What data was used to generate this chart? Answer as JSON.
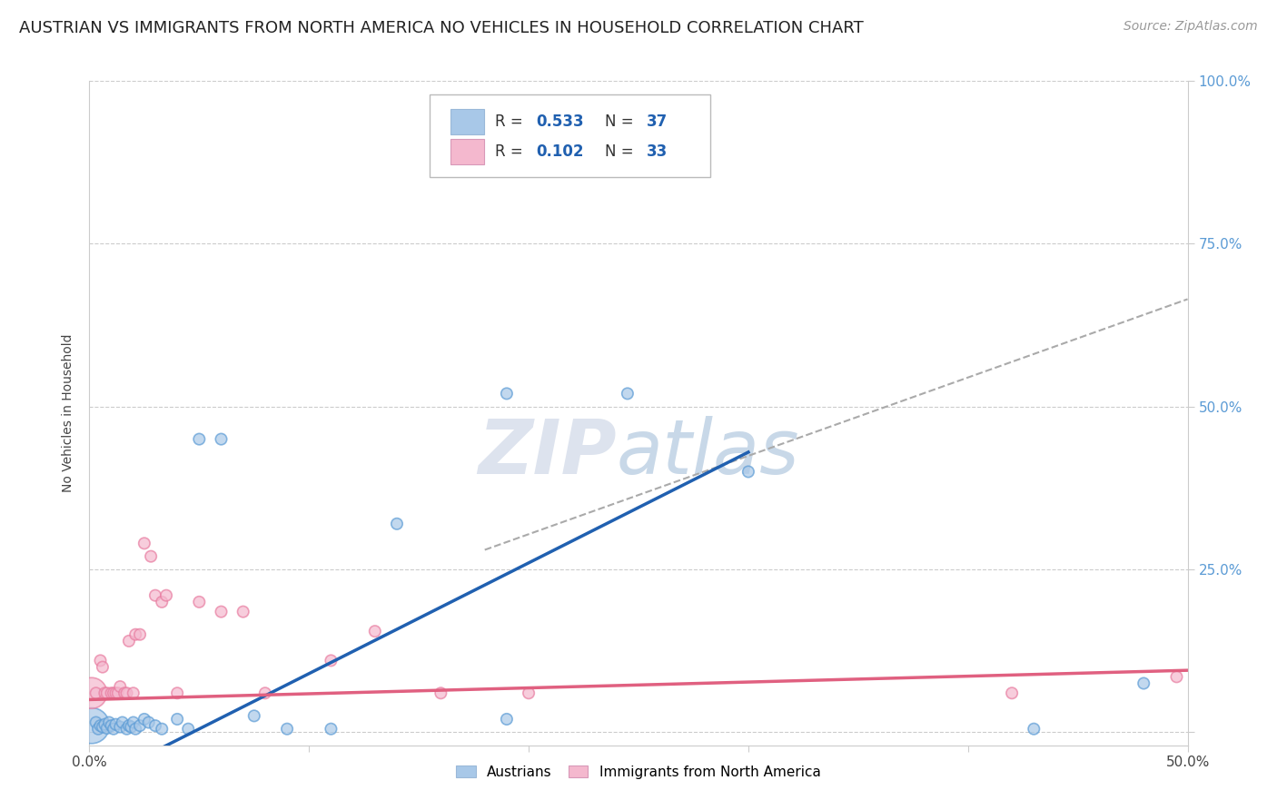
{
  "title": "AUSTRIAN VS IMMIGRANTS FROM NORTH AMERICA NO VEHICLES IN HOUSEHOLD CORRELATION CHART",
  "source": "Source: ZipAtlas.com",
  "ylabel": "No Vehicles in Household",
  "xlim": [
    0.0,
    0.5
  ],
  "ylim": [
    -0.02,
    1.0
  ],
  "yticks": [
    0.0,
    0.25,
    0.5,
    0.75,
    1.0
  ],
  "xticks": [
    0.0,
    0.1,
    0.2,
    0.3,
    0.4,
    0.5
  ],
  "austrians_R": 0.533,
  "austrians_N": 37,
  "immigrants_R": 0.102,
  "immigrants_N": 33,
  "blue_color": "#a8c8e8",
  "blue_edge_color": "#5b9bd5",
  "pink_color": "#f4b8ce",
  "pink_edge_color": "#e87ca0",
  "blue_line_color": "#2060b0",
  "pink_line_color": "#e06080",
  "dash_color": "#aaaaaa",
  "grid_color": "#cccccc",
  "watermark_color": "#dde3ee",
  "background_color": "#ffffff",
  "right_tick_color": "#5b9bd5",
  "legend_text_color": "#2060b0",
  "title_fontsize": 13,
  "label_fontsize": 10,
  "tick_fontsize": 11,
  "source_fontsize": 10,
  "aus_x": [
    0.001,
    0.003,
    0.004,
    0.005,
    0.006,
    0.007,
    0.008,
    0.009,
    0.01,
    0.011,
    0.012,
    0.014,
    0.015,
    0.017,
    0.018,
    0.019,
    0.02,
    0.021,
    0.023,
    0.025,
    0.027,
    0.03,
    0.033,
    0.04,
    0.045,
    0.05,
    0.06,
    0.075,
    0.09,
    0.11,
    0.14,
    0.19,
    0.245,
    0.3,
    0.19,
    0.43,
    0.48
  ],
  "aus_y": [
    0.01,
    0.015,
    0.005,
    0.01,
    0.008,
    0.012,
    0.006,
    0.015,
    0.01,
    0.005,
    0.012,
    0.008,
    0.015,
    0.005,
    0.01,
    0.008,
    0.015,
    0.005,
    0.01,
    0.02,
    0.015,
    0.01,
    0.005,
    0.02,
    0.005,
    0.45,
    0.45,
    0.025,
    0.005,
    0.005,
    0.32,
    0.52,
    0.52,
    0.4,
    0.02,
    0.005,
    0.075
  ],
  "aus_sizes": [
    80,
    80,
    80,
    80,
    80,
    80,
    80,
    80,
    80,
    80,
    80,
    80,
    80,
    80,
    80,
    80,
    80,
    80,
    80,
    80,
    80,
    80,
    80,
    80,
    80,
    80,
    80,
    80,
    80,
    80,
    80,
    80,
    80,
    80,
    80,
    80,
    80
  ],
  "imm_x": [
    0.001,
    0.003,
    0.005,
    0.006,
    0.007,
    0.008,
    0.01,
    0.011,
    0.012,
    0.013,
    0.014,
    0.016,
    0.017,
    0.018,
    0.02,
    0.021,
    0.023,
    0.025,
    0.028,
    0.03,
    0.033,
    0.035,
    0.04,
    0.05,
    0.06,
    0.07,
    0.08,
    0.11,
    0.13,
    0.16,
    0.2,
    0.42,
    0.495
  ],
  "imm_y": [
    0.06,
    0.06,
    0.11,
    0.1,
    0.06,
    0.06,
    0.06,
    0.06,
    0.06,
    0.06,
    0.07,
    0.06,
    0.06,
    0.14,
    0.06,
    0.15,
    0.15,
    0.29,
    0.27,
    0.21,
    0.2,
    0.21,
    0.06,
    0.2,
    0.185,
    0.185,
    0.06,
    0.11,
    0.155,
    0.06,
    0.06,
    0.06,
    0.085
  ],
  "imm_sizes": [
    600,
    80,
    80,
    80,
    80,
    80,
    80,
    80,
    80,
    80,
    80,
    80,
    80,
    80,
    80,
    80,
    80,
    80,
    80,
    80,
    80,
    80,
    80,
    80,
    80,
    80,
    80,
    80,
    80,
    80,
    80,
    80,
    80
  ],
  "blue_line_x": [
    0.0,
    0.3
  ],
  "blue_line_y": [
    -0.08,
    0.43
  ],
  "dash_line_x": [
    0.18,
    0.5
  ],
  "dash_line_y": [
    0.28,
    0.665
  ]
}
